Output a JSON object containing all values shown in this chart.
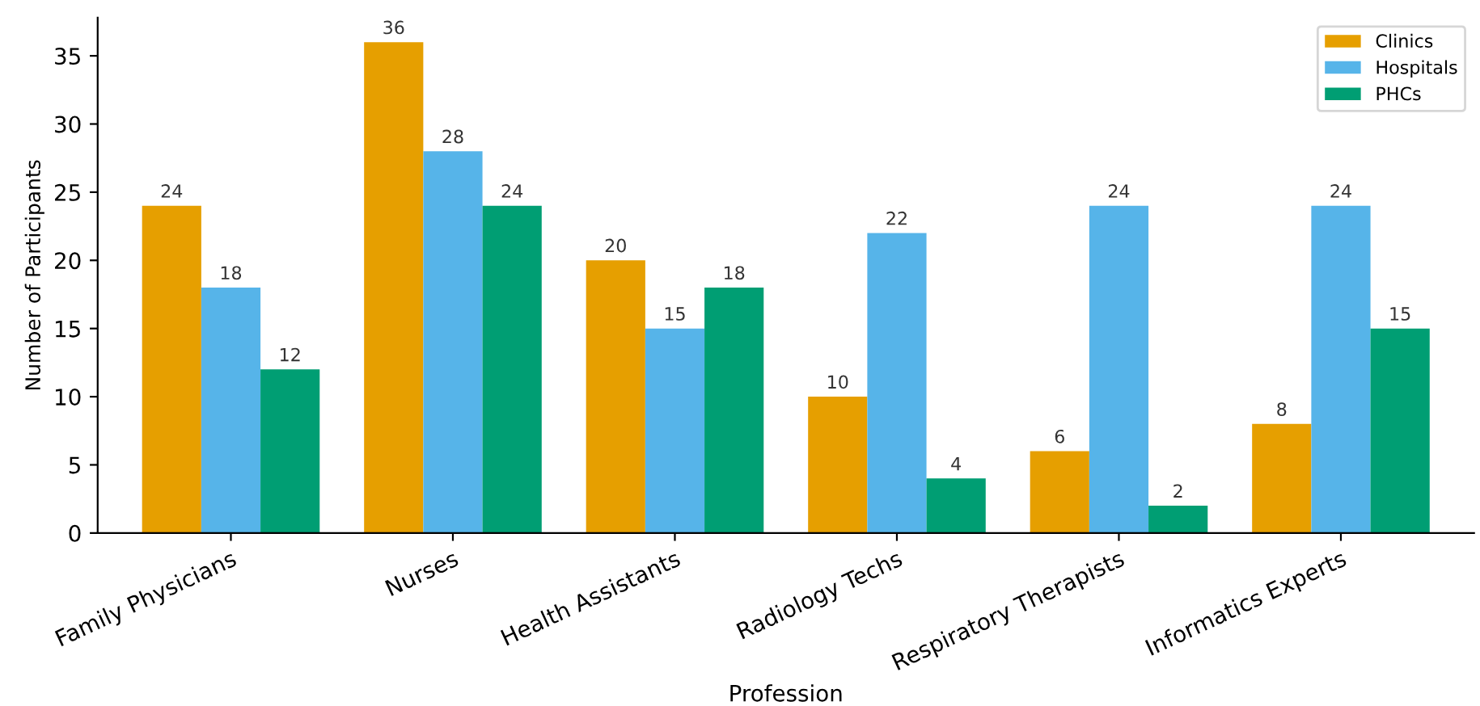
{
  "chart_data": {
    "type": "bar",
    "xlabel": "Profession",
    "ylabel": "Number of Participants",
    "categories": [
      "Family Physicians",
      "Nurses",
      "Health Assistants",
      "Radiology Techs",
      "Respiratory Therapists",
      "Informatics Experts"
    ],
    "series": [
      {
        "name": "Clinics",
        "color": "#e69f00",
        "values": [
          24,
          36,
          20,
          10,
          6,
          8
        ]
      },
      {
        "name": "Hospitals",
        "color": "#56b4e9",
        "values": [
          18,
          28,
          15,
          22,
          24,
          24
        ]
      },
      {
        "name": "PHCs",
        "color": "#009e73",
        "values": [
          12,
          24,
          18,
          4,
          2,
          15
        ]
      }
    ],
    "ylim": [
      0,
      37.8
    ],
    "yticks": [
      0,
      5,
      10,
      15,
      20,
      25,
      30,
      35
    ],
    "data_labels": true,
    "grid": false,
    "legend": "top right"
  }
}
